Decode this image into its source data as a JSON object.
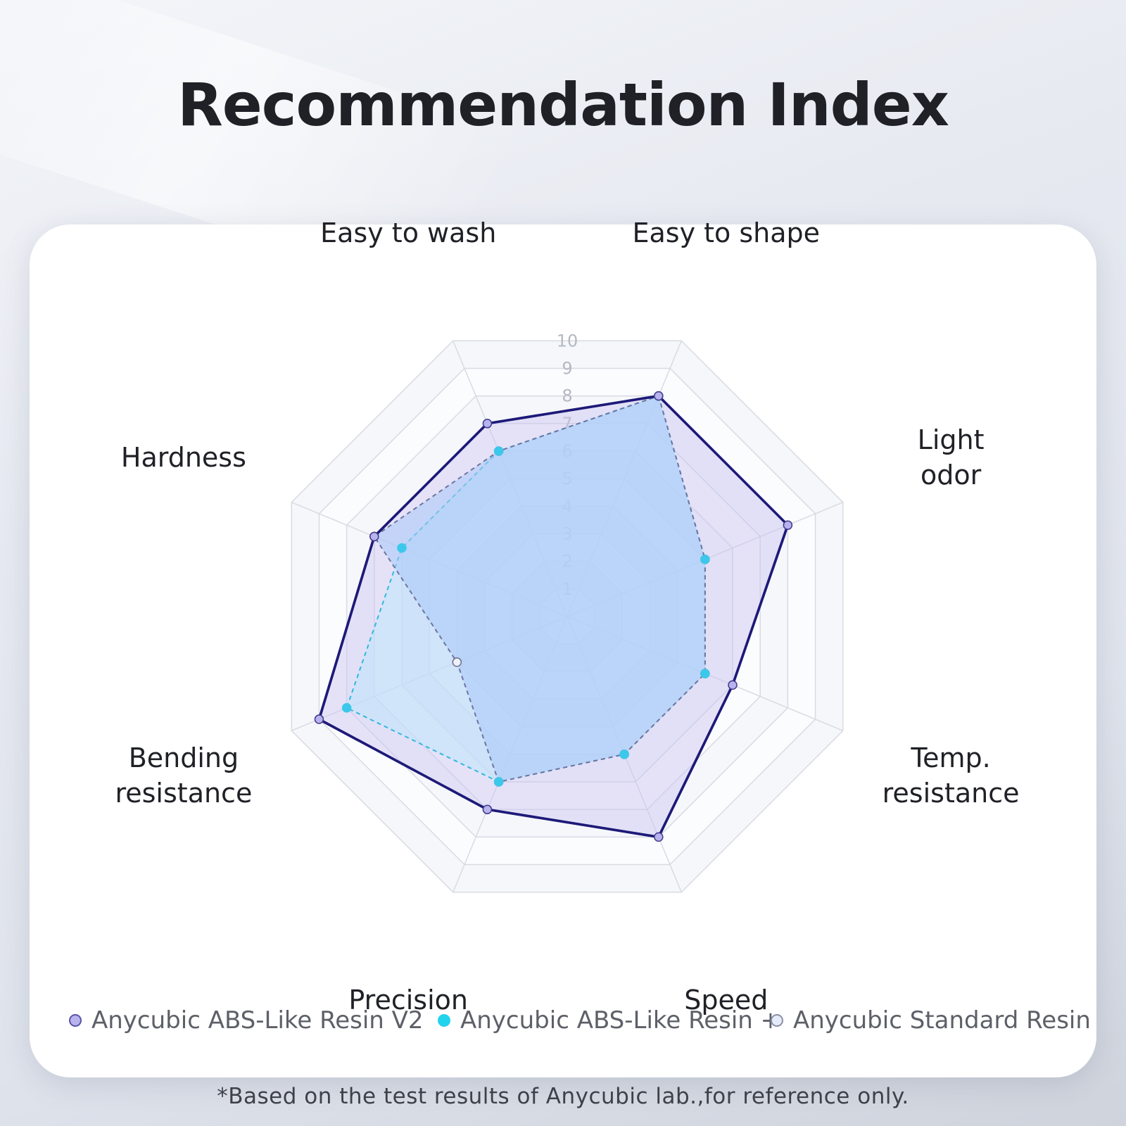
{
  "header": {
    "title": "Recommendation Index"
  },
  "footnote": "*Based on the test results of Anycubic lab.,for reference only.",
  "colors": {
    "series_v2_stroke": "#1e1a78",
    "series_v2_fill": "#c9c3f2",
    "series_plus_stroke": "#31b9dc",
    "series_plus_fill": "#bfe6fb",
    "series_standard_stroke": "#6e75a0",
    "series_standard_fill": "#a8c8f8",
    "grid": "#d8dbe2"
  },
  "chart_data": {
    "type": "radar",
    "title": "Recommendation Index",
    "categories": [
      [
        "Easy to shape"
      ],
      [
        "Light",
        "odor"
      ],
      [
        "Temp.",
        "resistance"
      ],
      [
        "Speed"
      ],
      [
        "Precision"
      ],
      [
        "Bending",
        "resistance"
      ],
      [
        "Hardness"
      ],
      [
        "Easy to wash"
      ]
    ],
    "ticks": [
      "1",
      "2",
      "3",
      "4",
      "5",
      "6",
      "7",
      "8",
      "9",
      "10"
    ],
    "range": [
      0,
      10
    ],
    "series": [
      {
        "name": "Anycubic ABS-Like Resin V2",
        "values": [
          8,
          8,
          6,
          8,
          7,
          9,
          7,
          7
        ]
      },
      {
        "name": "Anycubic ABS-Like Resin +",
        "values": [
          8,
          5,
          5,
          5,
          6,
          8,
          6,
          6
        ]
      },
      {
        "name": "Anycubic Standard Resin",
        "values": [
          8,
          5,
          5,
          5,
          6,
          4,
          7,
          6
        ]
      }
    ],
    "legend_position": "bottom"
  }
}
